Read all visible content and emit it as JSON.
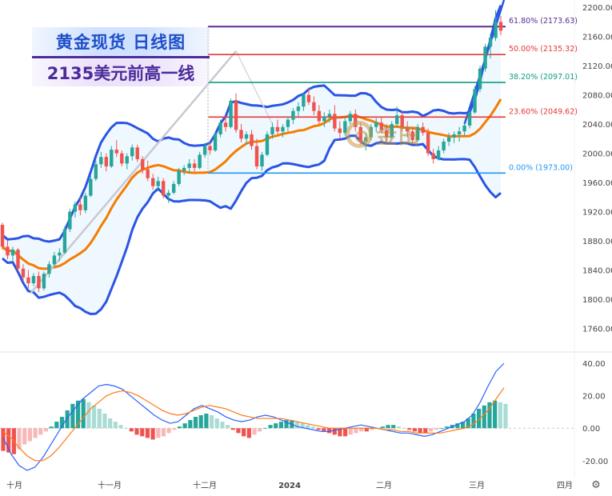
{
  "overlay": {
    "title": "黄金现货 日线图",
    "subtitle": "2135美元前高一线",
    "watermark": "金田"
  },
  "chart_data": {
    "type": "candlestick",
    "price_axis": {
      "ticks": [
        "2200.00",
        "2160.00",
        "2120.00",
        "2080.00",
        "2040.00",
        "2000.00",
        "1960.00",
        "1920.00",
        "1880.00",
        "1840.00",
        "1800.00",
        "1760.00"
      ],
      "range": [
        1730,
        2210
      ]
    },
    "indicator_axis": {
      "ticks": [
        "40.00",
        "20.00",
        "0.00",
        "-20.00"
      ],
      "range": [
        -27,
        44
      ]
    },
    "time_labels": [
      "十月",
      "十一月",
      "十二月",
      "2024",
      "二月",
      "三月",
      "四月"
    ],
    "fib_levels": [
      {
        "label": "61.80% (2173.63)",
        "price": 2173.63,
        "color": "#5b2c91"
      },
      {
        "label": "50.00% (2135.32)",
        "price": 2135.32,
        "color": "#e53935"
      },
      {
        "label": "38.20% (2097.01)",
        "price": 2097.01,
        "color": "#0f9c7f"
      },
      {
        "label": "23.60% (2049.62)",
        "price": 2049.62,
        "color": "#e53935"
      },
      {
        "label": "0.00% (1973.00)",
        "price": 1973.0,
        "color": "#2196f3"
      }
    ],
    "candles": [
      [
        1902,
        1905,
        1868,
        1872
      ],
      [
        1872,
        1880,
        1855,
        1860
      ],
      [
        1860,
        1872,
        1852,
        1868
      ],
      [
        1868,
        1870,
        1838,
        1842
      ],
      [
        1842,
        1848,
        1825,
        1830
      ],
      [
        1830,
        1840,
        1815,
        1822
      ],
      [
        1822,
        1836,
        1818,
        1832
      ],
      [
        1832,
        1838,
        1810,
        1815
      ],
      [
        1815,
        1838,
        1812,
        1835
      ],
      [
        1835,
        1852,
        1830,
        1848
      ],
      [
        1848,
        1865,
        1844,
        1860
      ],
      [
        1860,
        1870,
        1852,
        1864
      ],
      [
        1864,
        1900,
        1862,
        1896
      ],
      [
        1896,
        1924,
        1892,
        1920
      ],
      [
        1920,
        1934,
        1912,
        1930
      ],
      [
        1930,
        1940,
        1915,
        1922
      ],
      [
        1922,
        1946,
        1918,
        1942
      ],
      [
        1942,
        1970,
        1940,
        1965
      ],
      [
        1965,
        1990,
        1962,
        1985
      ],
      [
        1985,
        2002,
        1980,
        1995
      ],
      [
        1995,
        2000,
        1975,
        1982
      ],
      [
        1982,
        2010,
        1980,
        2005
      ],
      [
        2005,
        2018,
        1995,
        2000
      ],
      [
        2000,
        2004,
        1982,
        1986
      ],
      [
        1986,
        2000,
        1978,
        1996
      ],
      [
        1996,
        2012,
        1990,
        2008
      ],
      [
        2008,
        2012,
        1988,
        1992
      ],
      [
        1992,
        1996,
        1972,
        1978
      ],
      [
        1978,
        1990,
        1962,
        1966
      ],
      [
        1966,
        1972,
        1950,
        1955
      ],
      [
        1955,
        1968,
        1948,
        1962
      ],
      [
        1962,
        1966,
        1938,
        1942
      ],
      [
        1942,
        1950,
        1932,
        1946
      ],
      [
        1946,
        1962,
        1944,
        1958
      ],
      [
        1958,
        1980,
        1955,
        1976
      ],
      [
        1976,
        1984,
        1970,
        1980
      ],
      [
        1980,
        1992,
        1972,
        1986
      ],
      [
        1986,
        1992,
        1975,
        1980
      ],
      [
        1980,
        2002,
        1978,
        1998
      ],
      [
        1998,
        2014,
        1994,
        2010
      ],
      [
        2010,
        2016,
        1998,
        2004
      ],
      [
        2004,
        2030,
        2002,
        2026
      ],
      [
        2026,
        2046,
        2022,
        2042
      ],
      [
        2042,
        2050,
        2030,
        2036
      ],
      [
        2036,
        2075,
        2034,
        2072
      ],
      [
        2072,
        2082,
        2028,
        2032
      ],
      [
        2032,
        2040,
        2015,
        2020
      ],
      [
        2020,
        2030,
        2012,
        2026
      ],
      [
        2026,
        2032,
        2005,
        2010
      ],
      [
        2010,
        2020,
        1978,
        1982
      ],
      [
        1982,
        2002,
        1976,
        1998
      ],
      [
        1998,
        2030,
        1996,
        2026
      ],
      [
        2026,
        2042,
        2020,
        2036
      ],
      [
        2036,
        2046,
        2026,
        2030
      ],
      [
        2030,
        2040,
        2022,
        2036
      ],
      [
        2036,
        2050,
        2030,
        2046
      ],
      [
        2046,
        2062,
        2040,
        2058
      ],
      [
        2058,
        2070,
        2050,
        2064
      ],
      [
        2064,
        2084,
        2058,
        2080
      ],
      [
        2080,
        2090,
        2066,
        2070
      ],
      [
        2070,
        2078,
        2052,
        2058
      ],
      [
        2058,
        2066,
        2040,
        2044
      ],
      [
        2044,
        2056,
        2036,
        2050
      ],
      [
        2050,
        2060,
        2042,
        2054
      ],
      [
        2054,
        2066,
        2030,
        2034
      ],
      [
        2034,
        2044,
        2020,
        2028
      ],
      [
        2028,
        2048,
        2024,
        2044
      ],
      [
        2044,
        2058,
        2040,
        2054
      ],
      [
        2054,
        2060,
        2030,
        2036
      ],
      [
        2036,
        2042,
        2012,
        2016
      ],
      [
        2016,
        2028,
        2004,
        2022
      ],
      [
        2022,
        2040,
        2018,
        2036
      ],
      [
        2036,
        2048,
        2030,
        2042
      ],
      [
        2042,
        2050,
        2028,
        2032
      ],
      [
        2032,
        2040,
        2015,
        2022
      ],
      [
        2022,
        2044,
        2020,
        2040
      ],
      [
        2040,
        2064,
        2036,
        2052
      ],
      [
        2052,
        2058,
        2030,
        2036
      ],
      [
        2036,
        2044,
        2022,
        2030
      ],
      [
        2030,
        2036,
        2012,
        2018
      ],
      [
        2018,
        2040,
        2016,
        2036
      ],
      [
        2036,
        2042,
        2024,
        2028
      ],
      [
        2028,
        2034,
        1996,
        2000
      ],
      [
        2000,
        2006,
        1986,
        1992
      ],
      [
        1992,
        2010,
        1990,
        2004
      ],
      [
        2004,
        2020,
        2000,
        2016
      ],
      [
        2016,
        2028,
        2010,
        2022
      ],
      [
        2022,
        2030,
        2014,
        2026
      ],
      [
        2026,
        2036,
        2016,
        2030
      ],
      [
        2030,
        2042,
        2024,
        2038
      ],
      [
        2038,
        2060,
        2034,
        2056
      ],
      [
        2056,
        2092,
        2054,
        2088
      ],
      [
        2088,
        2120,
        2084,
        2116
      ],
      [
        2116,
        2150,
        2112,
        2146
      ],
      [
        2146,
        2164,
        2130,
        2158
      ],
      [
        2158,
        2196,
        2154,
        2180
      ],
      [
        2180,
        2188,
        2162,
        2168
      ]
    ],
    "macd_histogram": [
      -14,
      -15,
      -16,
      -13,
      -10,
      -8,
      -6,
      -4,
      -2,
      1,
      4,
      7,
      11,
      15,
      17,
      18,
      16,
      14,
      12,
      9,
      6,
      4,
      2,
      0,
      -2,
      -4,
      -5,
      -6,
      -7,
      -6,
      -5,
      -3,
      -1,
      1,
      3,
      5,
      7,
      8,
      9,
      8,
      6,
      4,
      2,
      -1,
      -3,
      -5,
      -6,
      -4,
      -2,
      0,
      2,
      3,
      4,
      5,
      5,
      4,
      3,
      2,
      1,
      -1,
      -2,
      -3,
      -4,
      -5,
      -5,
      -4,
      -3,
      -2,
      -2,
      -1,
      0,
      1,
      2,
      2,
      1,
      0,
      -1,
      -2,
      -3,
      -3,
      -2,
      -1,
      0,
      1,
      2,
      3,
      4,
      6,
      9,
      12,
      14,
      16,
      17,
      16,
      15
    ],
    "macd_line": [
      -6,
      -16,
      -23,
      -26,
      -24,
      -18,
      -10,
      -2,
      6,
      12,
      18,
      22,
      26,
      27,
      26,
      24,
      20,
      16,
      12,
      8,
      5,
      3,
      4,
      8,
      12,
      14,
      12,
      10,
      7,
      5,
      4,
      5,
      7,
      8,
      7,
      5,
      3,
      1,
      0,
      -1,
      -2,
      -2,
      -1,
      0,
      1,
      2,
      1,
      0,
      -1,
      -2,
      -3,
      -3,
      -4,
      -5,
      -4,
      -2,
      0,
      2,
      4,
      8,
      16,
      26,
      35,
      40
    ],
    "signal_line": [
      -2,
      -6,
      -12,
      -17,
      -20,
      -20,
      -17,
      -12,
      -6,
      0,
      6,
      12,
      16,
      20,
      22,
      23,
      22,
      20,
      17,
      14,
      11,
      9,
      8,
      9,
      11,
      13,
      14,
      13,
      12,
      10,
      8,
      7,
      6,
      6,
      6,
      6,
      5,
      4,
      3,
      2,
      1,
      0,
      0,
      0,
      0,
      0,
      0,
      0,
      -1,
      -1,
      -2,
      -2,
      -3,
      -3,
      -3,
      -3,
      -2,
      -1,
      0,
      2,
      6,
      11,
      18,
      25
    ]
  }
}
